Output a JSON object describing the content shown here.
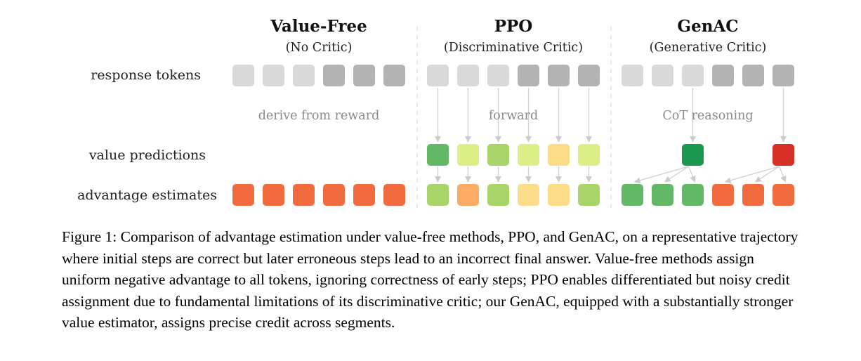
{
  "figure": {
    "columns": [
      {
        "title": "Value-Free",
        "subtitle": "(No Critic)",
        "process_label": "derive from reward",
        "response_tokens": [
          "light",
          "light",
          "light",
          "dark",
          "dark",
          "dark"
        ],
        "value_predictions": [],
        "advantage_estimates": [
          "#f26b3f",
          "#f26b3f",
          "#f26b3f",
          "#f26b3f",
          "#f26b3f",
          "#f26b3f"
        ]
      },
      {
        "title": "PPO",
        "subtitle": "(Discriminative Critic)",
        "process_label": "forward",
        "response_tokens": [
          "light",
          "light",
          "light",
          "dark",
          "dark",
          "dark"
        ],
        "value_predictions": [
          "#63b866",
          "#dcee86",
          "#a8d46a",
          "#dcee86",
          "#fcdc88",
          "#dcee86"
        ],
        "advantage_estimates": [
          "#a8d46a",
          "#fcab64",
          "#a8d46a",
          "#fcdc88",
          "#fcdc88",
          "#a8d46a"
        ]
      },
      {
        "title": "GenAC",
        "subtitle": "(Generative Critic)",
        "process_label": "CoT reasoning",
        "response_tokens": [
          "light",
          "light",
          "light",
          "dark",
          "dark",
          "dark"
        ],
        "value_predictions": [
          null,
          null,
          "#1b9850",
          null,
          null,
          "#d73027"
        ],
        "advantage_estimates": [
          "#63b866",
          "#63b866",
          "#63b866",
          "#f26b3f",
          "#f26b3f",
          "#f26b3f"
        ]
      }
    ],
    "row_labels": {
      "response_tokens": "response tokens",
      "value_predictions": "value predictions",
      "advantage_estimates": "advantage estimates"
    },
    "token_colors": {
      "light": "#d9d9d9",
      "dark": "#b3b3b3"
    },
    "arrow_color": "#d0d0d0"
  },
  "caption": "Figure 1: Comparison of advantage estimation under value-free methods, PPO, and GenAC, on a representative trajectory where initial steps are correct but later erroneous steps lead to an incorrect final answer. Value-free methods assign uniform negative advantage to all tokens, ignoring correctness of early steps; PPO enables differentiated but noisy credit assignment due to fundamental limitations of its discriminative critic; our GenAC, equipped with a substantially stronger value estimator, assigns precise credit across segments."
}
